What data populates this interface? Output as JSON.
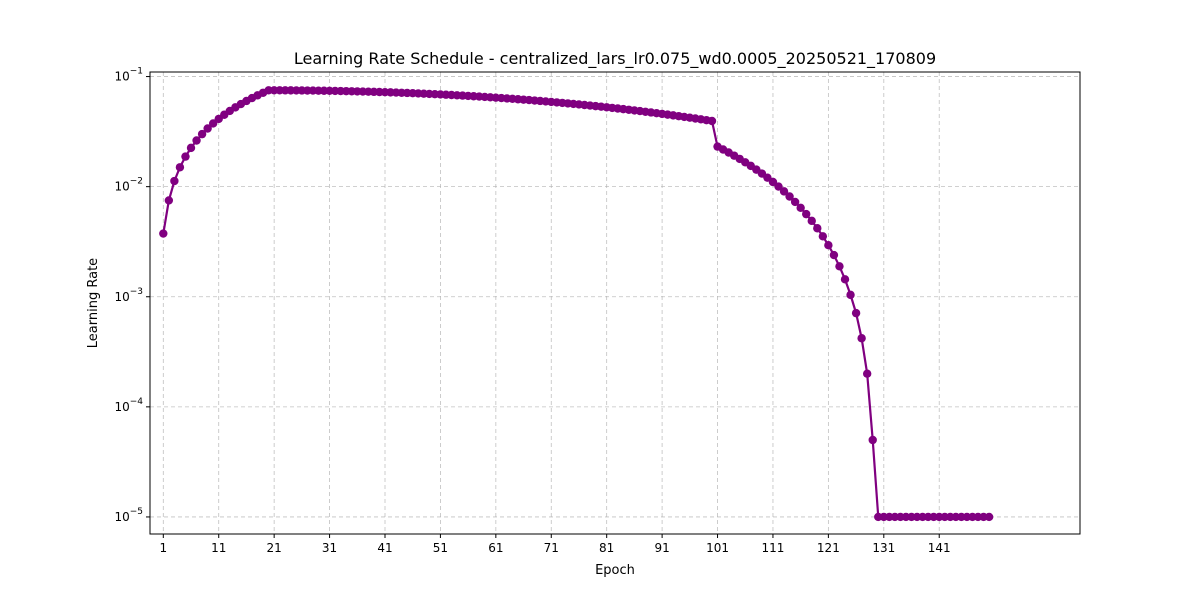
{
  "chart_data": {
    "type": "line",
    "title": "Learning Rate Schedule - centralized_lars_lr0.075_wd0.0005_20250521_170809",
    "xlabel": "Epoch",
    "ylabel": "Learning Rate",
    "y_scale": "log",
    "xlim": [
      -1.4,
      166.4
    ],
    "ylim": [
      7e-06,
      0.11
    ],
    "x_ticks": [
      1,
      11,
      21,
      31,
      41,
      51,
      61,
      71,
      81,
      91,
      101,
      111,
      121,
      131,
      141
    ],
    "y_ticks": [
      {
        "value": 1e-05,
        "base": "10",
        "exp": "−5"
      },
      {
        "value": 0.0001,
        "base": "10",
        "exp": "−4"
      },
      {
        "value": 0.001,
        "base": "10",
        "exp": "−3"
      },
      {
        "value": 0.01,
        "base": "10",
        "exp": "−2"
      },
      {
        "value": 0.1,
        "base": "10",
        "exp": "−1"
      }
    ],
    "grid": true,
    "color": "#800080",
    "x": [
      1,
      2,
      3,
      4,
      5,
      6,
      7,
      8,
      9,
      10,
      11,
      12,
      13,
      14,
      15,
      16,
      17,
      18,
      19,
      20,
      21,
      22,
      23,
      24,
      25,
      26,
      27,
      28,
      29,
      30,
      31,
      32,
      33,
      34,
      35,
      36,
      37,
      38,
      39,
      40,
      41,
      42,
      43,
      44,
      45,
      46,
      47,
      48,
      49,
      50,
      51,
      52,
      53,
      54,
      55,
      56,
      57,
      58,
      59,
      60,
      61,
      62,
      63,
      64,
      65,
      66,
      67,
      68,
      69,
      70,
      71,
      72,
      73,
      74,
      75,
      76,
      77,
      78,
      79,
      80,
      81,
      82,
      83,
      84,
      85,
      86,
      87,
      88,
      89,
      90,
      91,
      92,
      93,
      94,
      95,
      96,
      97,
      98,
      99,
      100,
      101,
      102,
      103,
      104,
      105,
      106,
      107,
      108,
      109,
      110,
      111,
      112,
      113,
      114,
      115,
      116,
      117,
      118,
      119,
      120,
      121,
      122,
      123,
      124,
      125,
      126,
      127,
      128,
      129,
      130,
      131,
      132,
      133,
      134,
      135,
      136,
      137,
      138,
      139,
      140,
      141,
      142,
      143,
      144,
      145,
      146,
      147,
      148,
      149,
      150
    ],
    "values": [
      0.00375,
      0.0075,
      0.01125,
      0.015,
      0.01875,
      0.0225,
      0.02625,
      0.03,
      0.03375,
      0.0375,
      0.04125,
      0.045,
      0.04875,
      0.0525,
      0.05625,
      0.06,
      0.06375,
      0.0675,
      0.07125,
      0.075,
      0.07499,
      0.07497,
      0.07494,
      0.07489,
      0.07483,
      0.07476,
      0.07467,
      0.07457,
      0.07446,
      0.07434,
      0.0742,
      0.07405,
      0.07388,
      0.07371,
      0.07352,
      0.07332,
      0.0731,
      0.07287,
      0.07263,
      0.07238,
      0.07212,
      0.07184,
      0.07155,
      0.07125,
      0.07093,
      0.07061,
      0.07027,
      0.06992,
      0.06955,
      0.06918,
      0.06879,
      0.0684,
      0.06799,
      0.06757,
      0.06713,
      0.06669,
      0.06624,
      0.06577,
      0.0653,
      0.06481,
      0.06432,
      0.06381,
      0.06329,
      0.06277,
      0.06223,
      0.06169,
      0.06114,
      0.06058,
      0.06001,
      0.05943,
      0.05884,
      0.05825,
      0.05765,
      0.05704,
      0.05642,
      0.0558,
      0.05517,
      0.05453,
      0.05389,
      0.05324,
      0.05259,
      0.05193,
      0.05127,
      0.0506,
      0.04993,
      0.04925,
      0.04857,
      0.04788,
      0.04719,
      0.0465,
      0.0458,
      0.04511,
      0.04441,
      0.0437,
      0.043,
      0.0423,
      0.04159,
      0.04089,
      0.04018,
      0.03947,
      0.02311,
      0.02175,
      0.02043,
      0.01913,
      0.01787,
      0.01664,
      0.01544,
      0.01428,
      0.01316,
      0.01207,
      0.01103,
      0.01002,
      0.00906,
      0.00814,
      0.00726,
      0.00642,
      0.00563,
      0.00489,
      0.00419,
      0.00354,
      0.00294,
      0.00239,
      0.00189,
      0.00144,
      0.00104,
      0.00071,
      0.00042,
      0.0002,
      5e-05,
      1e-05,
      1e-05,
      1e-05,
      1e-05,
      1e-05,
      1e-05,
      1e-05,
      1e-05,
      1e-05,
      1e-05,
      1e-05,
      1e-05,
      1e-05,
      1e-05,
      1e-05,
      1e-05,
      1e-05,
      1e-05,
      1e-05,
      1e-05,
      1e-05
    ]
  }
}
